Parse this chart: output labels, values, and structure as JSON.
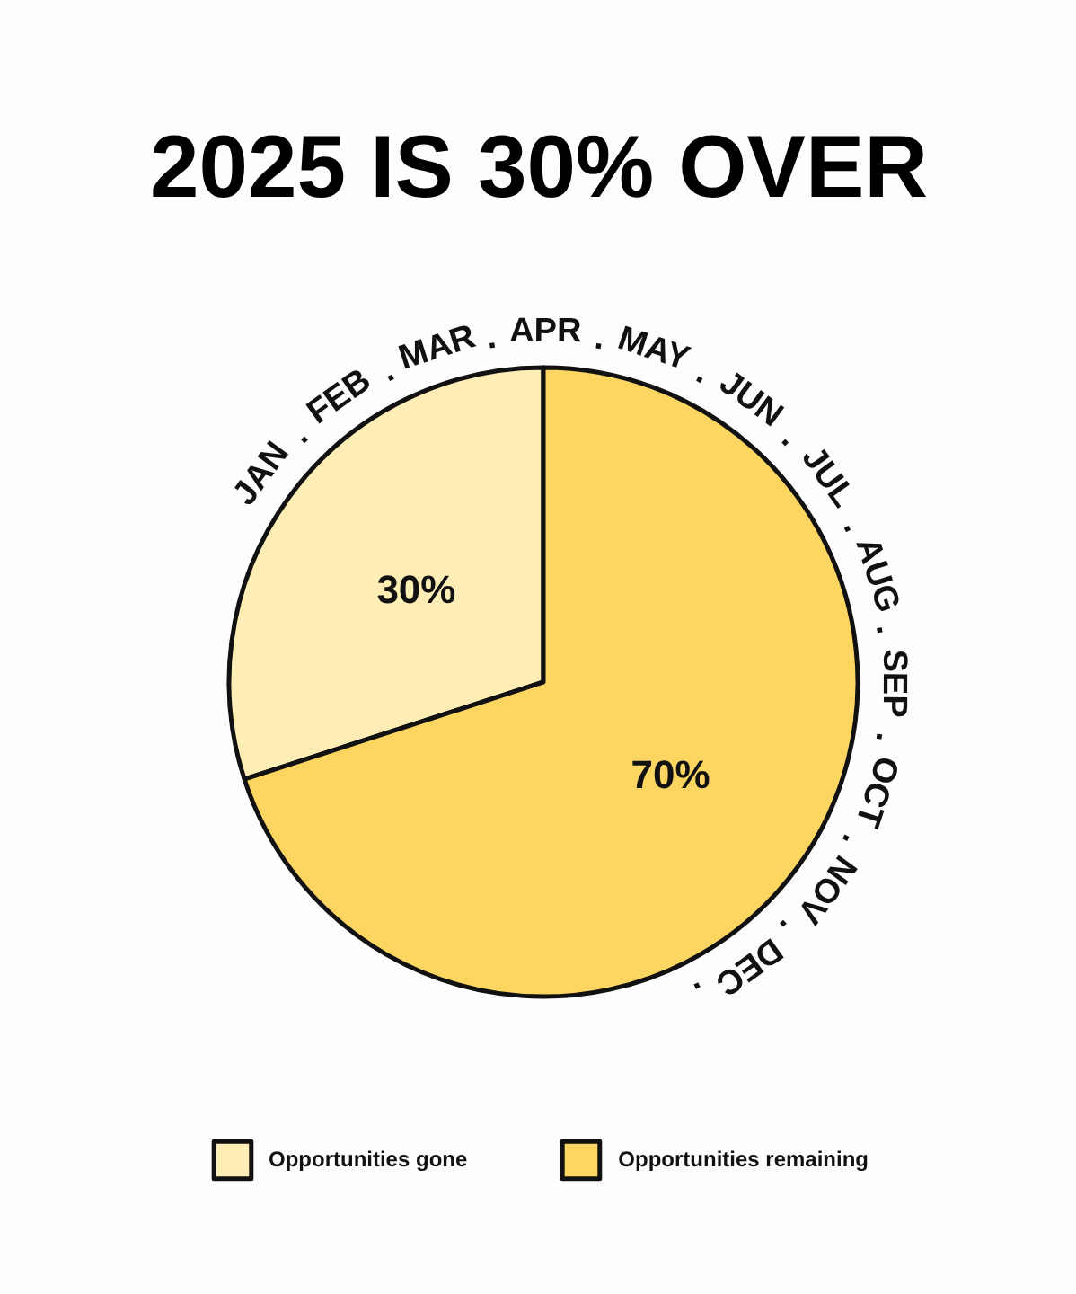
{
  "chart_data": {
    "type": "pie",
    "title": "2025 IS 30% OVER",
    "categories": [
      "Opportunities gone",
      "Opportunities remaining"
    ],
    "values": [
      30,
      70
    ],
    "colors": [
      "#feedb4",
      "#fdd561"
    ],
    "value_labels": [
      "30%",
      "70%"
    ],
    "legend": "bottom",
    "annotations": [
      "JAN . FEB . MAR . APR . MAY . JUN . JUL . AUG . SEP . OCT . NOV . DEC ."
    ]
  }
}
